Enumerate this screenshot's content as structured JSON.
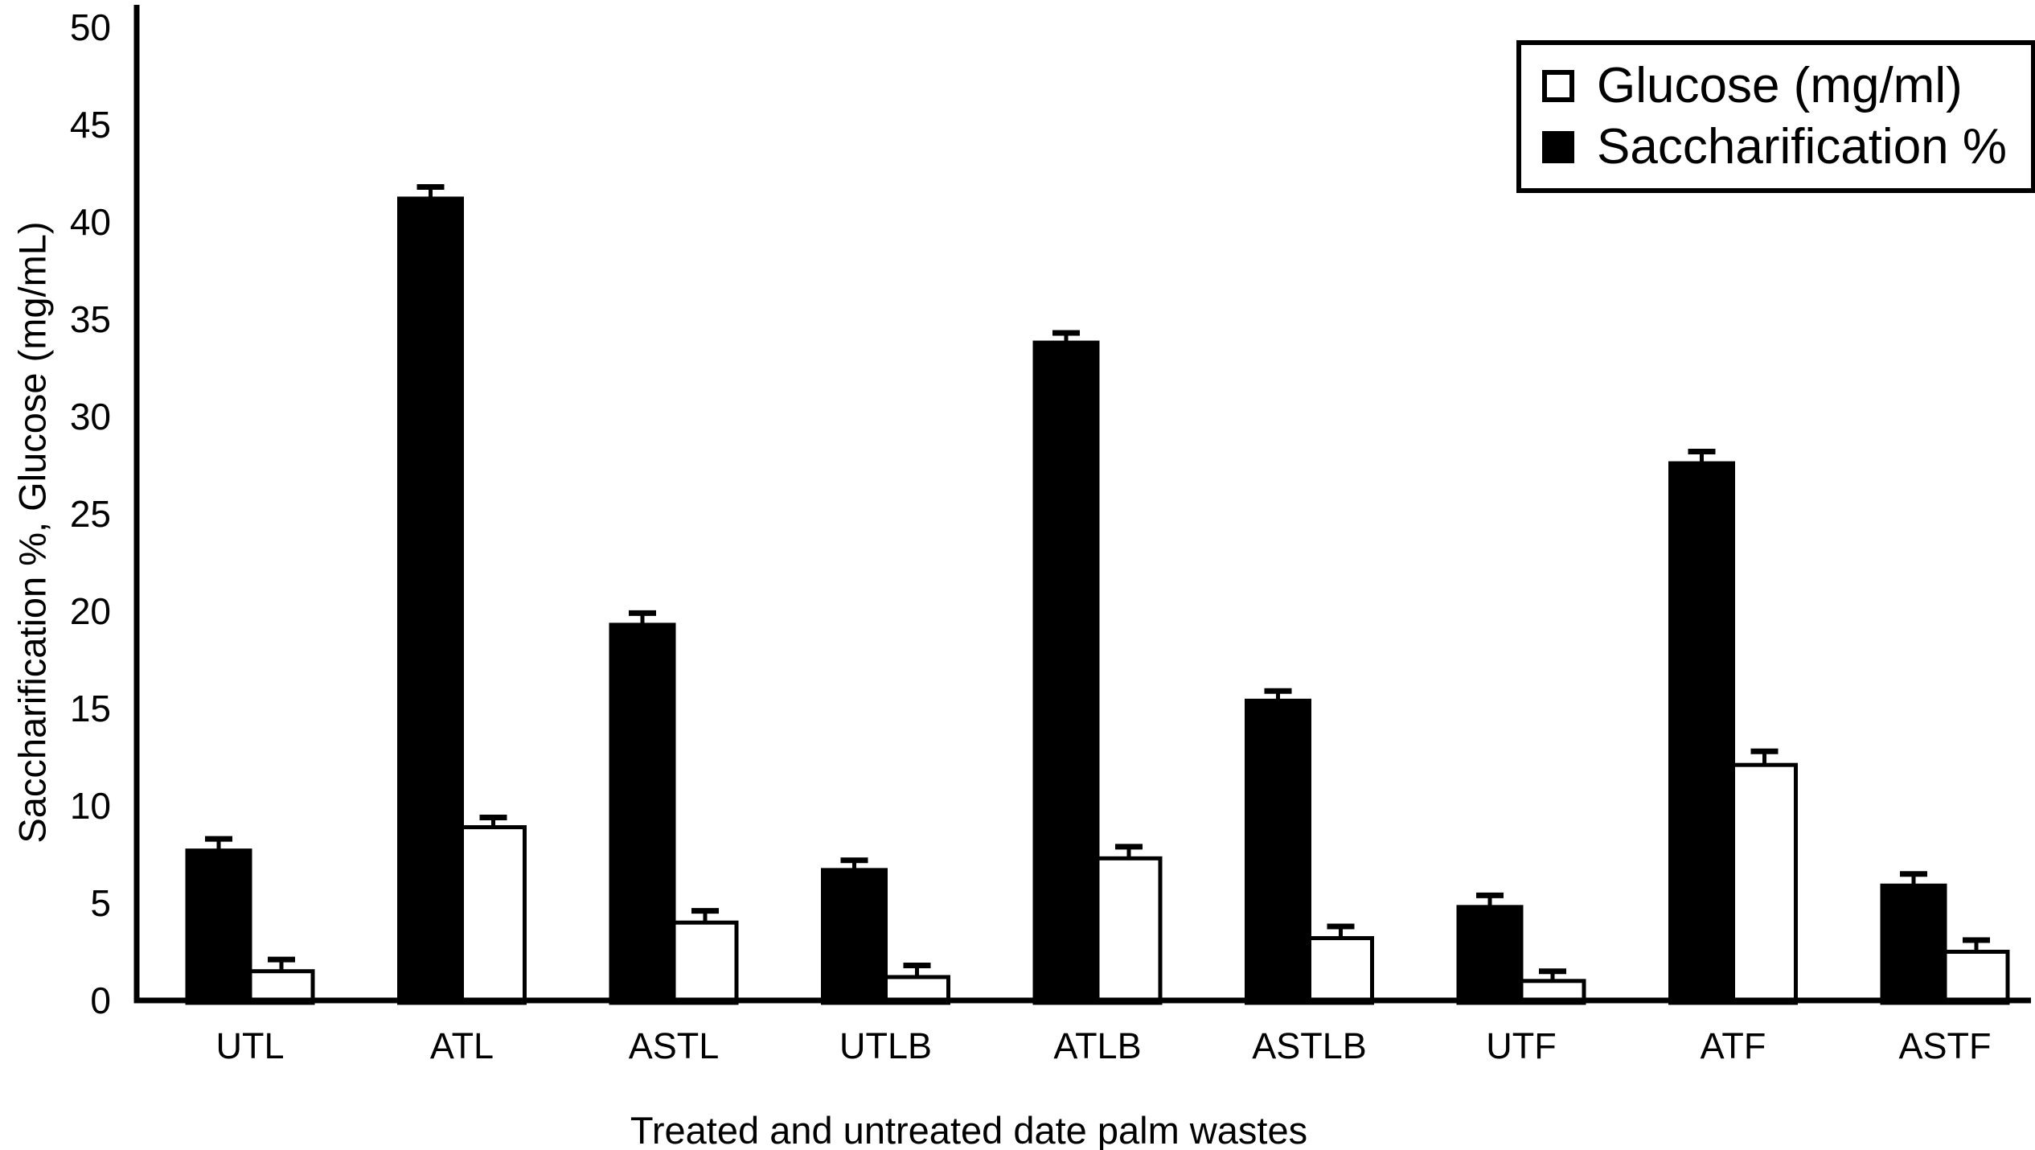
{
  "figure": {
    "background_color": "#ffffff",
    "ink_color": "#000000"
  },
  "legend": {
    "position": "top-right",
    "items": [
      {
        "label": "Glucose (mg/ml)",
        "swatch": "open-square",
        "swatch_color": "#ffffff"
      },
      {
        "label": "Saccharification %",
        "swatch": "filled-square",
        "swatch_color": "#000000"
      }
    ]
  },
  "chart_data": {
    "type": "bar",
    "title": "",
    "xlabel": "Treated and untreated date palm wastes",
    "ylabel": "Saccharification %, Glucose (mg/mL)",
    "categories": [
      "UTL",
      "ATL",
      "ASTL",
      "UTLB",
      "ATLB",
      "ASTLB",
      "UTF",
      "ATF",
      "ASTF"
    ],
    "series": [
      {
        "name": "Saccharification %",
        "fill": "#000000",
        "stroke": "#000000",
        "values": [
          7.7,
          41.2,
          19.3,
          6.7,
          33.8,
          15.4,
          4.8,
          27.6,
          5.9
        ],
        "errors": [
          0.6,
          0.6,
          0.6,
          0.5,
          0.5,
          0.5,
          0.6,
          0.6,
          0.6
        ]
      },
      {
        "name": "Glucose (mg/ml)",
        "fill": "#ffffff",
        "stroke": "#000000",
        "values": [
          1.5,
          8.9,
          4.0,
          1.2,
          7.3,
          3.2,
          1.0,
          12.1,
          2.5
        ],
        "errors": [
          0.6,
          0.5,
          0.6,
          0.6,
          0.6,
          0.6,
          0.5,
          0.7,
          0.6
        ]
      }
    ],
    "ylim": [
      0,
      50
    ],
    "yticks": [
      0,
      5,
      10,
      15,
      20,
      25,
      30,
      35,
      40,
      45,
      50
    ],
    "grid": false,
    "error_bars": true,
    "legend_position": "top-right"
  }
}
